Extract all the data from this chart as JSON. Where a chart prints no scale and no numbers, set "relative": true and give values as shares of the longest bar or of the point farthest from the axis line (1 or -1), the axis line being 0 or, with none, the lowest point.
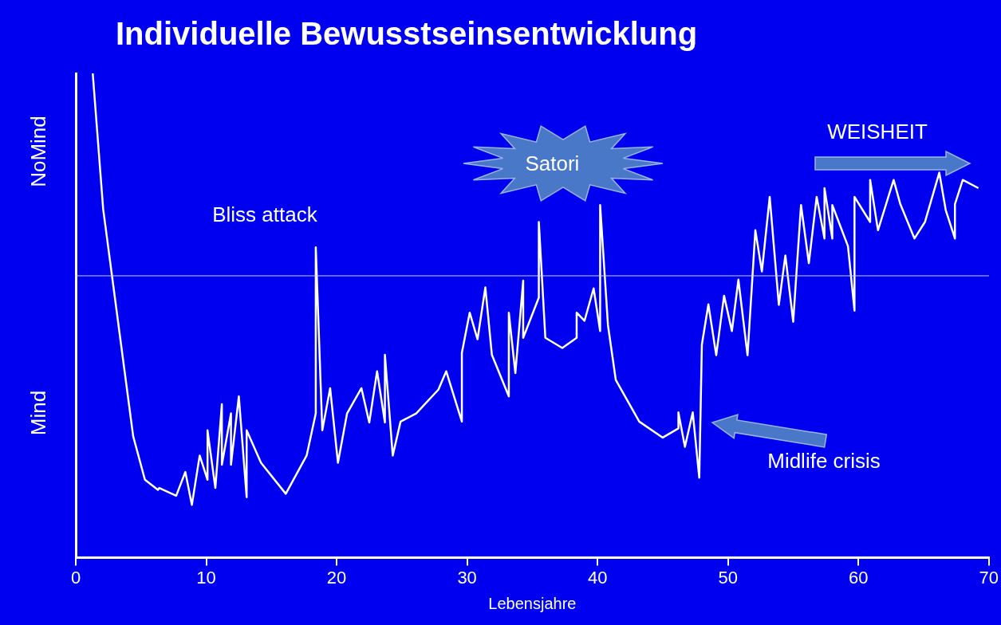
{
  "chart_data": {
    "type": "line",
    "title": "Individuelle Bewusstseinsentwicklung",
    "xlabel": "Lebensjahre",
    "relative": true,
    "xlim": [
      0,
      70
    ],
    "xticks": [
      0,
      10,
      20,
      30,
      40,
      50,
      60,
      70
    ],
    "ref_lines": [
      {
        "axis": "y",
        "value": 0.582,
        "color": "#c8c8ff"
      }
    ],
    "annotations": [
      {
        "text": "Bliss attack",
        "x": 18.4,
        "y": 0.641
      },
      {
        "text": "Satori",
        "x": 40.2,
        "y": 0.728
      },
      "WEISHEIT",
      "Midlife crisis",
      "NoMind",
      "Mind"
    ],
    "series": [
      {
        "color": "#ffffff",
        "x": [
          1.3,
          2.1,
          4.4,
          5.3,
          6.3,
          6.4,
          7.7,
          8.4,
          8.9,
          9.5,
          10.1,
          10.1,
          10.7,
          11.2,
          11.2,
          11.9,
          11.9,
          12.5,
          13.1,
          13.1,
          14.2,
          16.1,
          17.7,
          18.4,
          18.4,
          18.9,
          19.5,
          20.1,
          20.8,
          21.9,
          22.5,
          23.1,
          23.7,
          23.7,
          24.3,
          24.9,
          26.1,
          27.8,
          28.4,
          29.6,
          29.6,
          30.2,
          30.8,
          31.4,
          31.9,
          33.2,
          33.2,
          33.7,
          34.3,
          34.3,
          35.5,
          35.5,
          36.0,
          37.3,
          38.4,
          38.4,
          39.0,
          39.7,
          40.2,
          40.2,
          40.8,
          41.4,
          43.2,
          45.0,
          46.2,
          46.2,
          46.7,
          47.3,
          47.8,
          48.0,
          48.5,
          49.1,
          49.7,
          50.3,
          50.8,
          51.5,
          52.1,
          52.6,
          53.2,
          53.9,
          54.4,
          55.0,
          55.6,
          56.2,
          56.8,
          57.4,
          57.4,
          58.0,
          58.0,
          59.2,
          59.7,
          59.7,
          60.9,
          60.9,
          61.5,
          62.7,
          63.2,
          64.3,
          65.1,
          66.2,
          66.7,
          67.4,
          67.4,
          68.0,
          69.2
        ],
        "values": [
          1.0,
          0.72,
          0.251,
          0.161,
          0.14,
          0.144,
          0.128,
          0.177,
          0.109,
          0.211,
          0.161,
          0.263,
          0.144,
          0.317,
          0.192,
          0.298,
          0.192,
          0.333,
          0.125,
          0.263,
          0.196,
          0.132,
          0.211,
          0.298,
          0.641,
          0.263,
          0.35,
          0.196,
          0.298,
          0.35,
          0.279,
          0.385,
          0.279,
          0.419,
          0.211,
          0.281,
          0.298,
          0.347,
          0.385,
          0.281,
          0.423,
          0.506,
          0.451,
          0.558,
          0.419,
          0.333,
          0.506,
          0.381,
          0.572,
          0.454,
          0.537,
          0.693,
          0.454,
          0.433,
          0.454,
          0.506,
          0.489,
          0.556,
          0.468,
          0.728,
          0.48,
          0.367,
          0.281,
          0.248,
          0.267,
          0.3,
          0.229,
          0.3,
          0.165,
          0.44,
          0.523,
          0.418,
          0.541,
          0.468,
          0.574,
          0.418,
          0.676,
          0.591,
          0.745,
          0.522,
          0.624,
          0.487,
          0.728,
          0.608,
          0.745,
          0.659,
          0.763,
          0.659,
          0.728,
          0.643,
          0.51,
          0.745,
          0.693,
          0.78,
          0.676,
          0.78,
          0.731,
          0.659,
          0.693,
          0.795,
          0.717,
          0.659,
          0.73,
          0.78,
          0.763
        ]
      }
    ]
  }
}
